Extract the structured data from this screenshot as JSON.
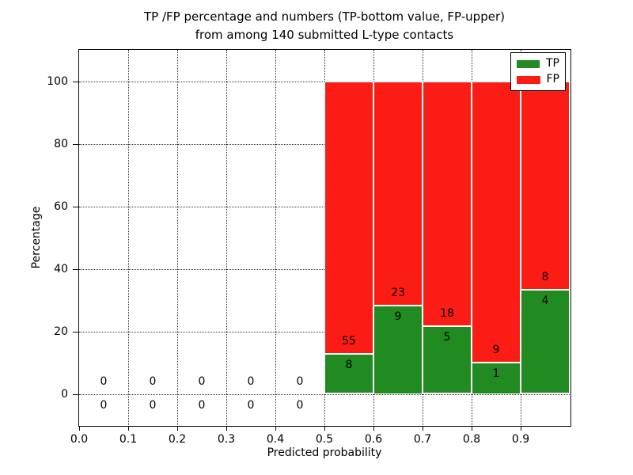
{
  "figure": {
    "title_line1": "TP /FP percentage and numbers (TP-bottom value, FP-upper)",
    "title_line2": "from among 140 submitted L-type contacts"
  },
  "legend": {
    "tp_label": "TP",
    "fp_label": "FP"
  },
  "colors": {
    "tp_green": "#218a21",
    "fp_red": "#fb1d15",
    "bar_edge": "#ffffff"
  },
  "chart_data": {
    "type": "bar",
    "stacked": true,
    "title": "TP /FP percentage and numbers (TP-bottom value, FP-upper) from among 140 submitted L-type contacts",
    "xlabel": "Predicted probability",
    "ylabel": "Percentage",
    "xlim": [
      0.0,
      1.0
    ],
    "ylim": [
      -10,
      110
    ],
    "xticks": [
      "0.0",
      "0.1",
      "0.2",
      "0.3",
      "0.4",
      "0.5",
      "0.6",
      "0.7",
      "0.8",
      "0.9"
    ],
    "yticks": [
      0,
      20,
      40,
      60,
      80,
      100
    ],
    "grid": "dotted",
    "legend_position": "upper right",
    "total_submitted": 140,
    "series": [
      {
        "name": "TP",
        "values": [
          0,
          0,
          0,
          0,
          0,
          8,
          9,
          5,
          1,
          4
        ]
      },
      {
        "name": "FP",
        "values": [
          0,
          0,
          0,
          0,
          0,
          55,
          23,
          18,
          9,
          8
        ]
      }
    ],
    "bins": [
      {
        "x0": 0.0,
        "x1": 0.1,
        "tp": 0,
        "fp": 0,
        "tp_percent": 0
      },
      {
        "x0": 0.1,
        "x1": 0.2,
        "tp": 0,
        "fp": 0,
        "tp_percent": 0
      },
      {
        "x0": 0.2,
        "x1": 0.3,
        "tp": 0,
        "fp": 0,
        "tp_percent": 0
      },
      {
        "x0": 0.3,
        "x1": 0.4,
        "tp": 0,
        "fp": 0,
        "tp_percent": 0
      },
      {
        "x0": 0.4,
        "x1": 0.5,
        "tp": 0,
        "fp": 0,
        "tp_percent": 0
      },
      {
        "x0": 0.5,
        "x1": 0.6,
        "tp": 8,
        "fp": 55,
        "tp_percent": 12.7
      },
      {
        "x0": 0.6,
        "x1": 0.7,
        "tp": 9,
        "fp": 23,
        "tp_percent": 28.1
      },
      {
        "x0": 0.7,
        "x1": 0.8,
        "tp": 5,
        "fp": 18,
        "tp_percent": 21.7
      },
      {
        "x0": 0.8,
        "x1": 0.9,
        "tp": 1,
        "fp": 9,
        "tp_percent": 10.0
      },
      {
        "x0": 0.9,
        "x1": 1.0,
        "tp": 4,
        "fp": 8,
        "tp_percent": 33.3
      }
    ]
  }
}
